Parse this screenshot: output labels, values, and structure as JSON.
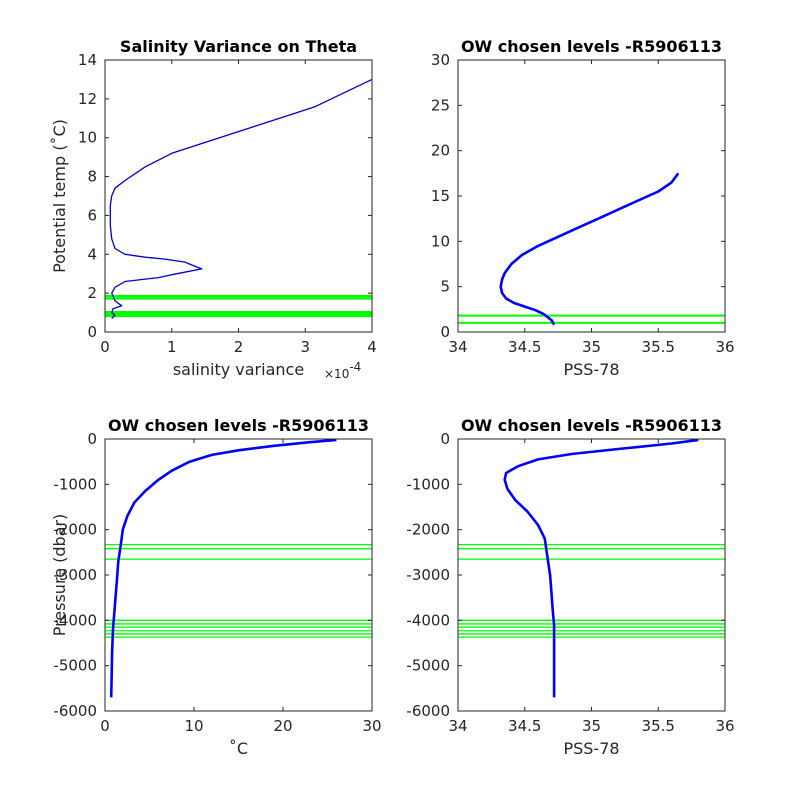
{
  "chart_data": [
    {
      "type": "line",
      "title": "Salinity Variance on Theta",
      "xlabel": "salinity variance",
      "x_exponent_base": "×10",
      "x_exponent_power": "-4",
      "ylabel": "Potential temp (˚C)",
      "xlim": [
        0,
        4
      ],
      "ylim": [
        0,
        14
      ],
      "xticks": [
        0,
        1,
        2,
        3,
        4
      ],
      "yticks": [
        0,
        2,
        4,
        6,
        8,
        10,
        12,
        14
      ],
      "line_color": "#0000cc",
      "level_color": "#00ff00",
      "series": [
        {
          "x": [
            0.1,
            0.15,
            0.1,
            0.12,
            0.25,
            0.15,
            0.1,
            0.15,
            0.3,
            0.8,
            1.0,
            1.45,
            1.3,
            1.2,
            0.9,
            0.6,
            0.3,
            0.15,
            0.1,
            0.08,
            0.08,
            0.1,
            0.15,
            0.3,
            0.6,
            1.0,
            1.9,
            3.15,
            4.0
          ],
          "y": [
            0.7,
            0.85,
            1.0,
            1.2,
            1.35,
            1.6,
            2.0,
            2.3,
            2.6,
            2.8,
            2.95,
            3.25,
            3.45,
            3.6,
            3.75,
            3.85,
            4.0,
            4.3,
            4.8,
            5.5,
            6.5,
            7.0,
            7.4,
            7.8,
            8.5,
            9.2,
            10.2,
            11.6,
            13.0
          ]
        }
      ],
      "levels": [
        0.8,
        0.85,
        0.9,
        0.95,
        1.0,
        1.05,
        1.7,
        1.75,
        1.82,
        1.88
      ]
    },
    {
      "type": "line",
      "title": "OW chosen levels -R5906113",
      "xlabel": "PSS-78",
      "ylabel": "",
      "xlim": [
        34,
        36
      ],
      "ylim": [
        0,
        30
      ],
      "xticks": [
        34,
        34.5,
        35,
        35.5,
        36
      ],
      "yticks": [
        0,
        5,
        10,
        15,
        20,
        25,
        30
      ],
      "line_color": "#0000ff",
      "level_color": "#00ff00",
      "series": [
        {
          "x": [
            34.72,
            34.7,
            34.64,
            34.58,
            34.5,
            34.42,
            34.36,
            34.33,
            34.32,
            34.33,
            34.35,
            34.4,
            34.48,
            34.6,
            34.75,
            34.9,
            35.05,
            35.2,
            35.35,
            35.5,
            35.6,
            35.65
          ],
          "y": [
            0.8,
            1.3,
            2.0,
            2.4,
            2.8,
            3.2,
            3.7,
            4.3,
            5.0,
            5.8,
            6.5,
            7.5,
            8.5,
            9.5,
            10.5,
            11.5,
            12.5,
            13.5,
            14.5,
            15.5,
            16.5,
            17.5
          ]
        }
      ],
      "levels": [
        1.0,
        1.8
      ]
    },
    {
      "type": "line",
      "title": "OW chosen levels -R5906113",
      "xlabel": "˚C",
      "ylabel": "Pressure (dbar)",
      "xlim": [
        0,
        30
      ],
      "ylim": [
        -6000,
        0
      ],
      "xticks": [
        0,
        10,
        20,
        30
      ],
      "yticks": [
        -6000,
        -5000,
        -4000,
        -3000,
        -2000,
        -1000,
        0
      ],
      "line_color": "#0000ff",
      "level_color": "#00ff00",
      "series": [
        {
          "x": [
            0.7,
            0.75,
            0.8,
            0.9,
            1.1,
            1.3,
            1.5,
            1.8,
            2.0,
            2.5,
            3.3,
            4.5,
            6.0,
            7.5,
            9.5,
            12.0,
            15.0,
            19.0,
            23.0,
            26.0
          ],
          "y": [
            -5700,
            -5200,
            -4700,
            -4200,
            -3700,
            -3200,
            -2700,
            -2300,
            -2000,
            -1700,
            -1400,
            -1150,
            -900,
            -700,
            -500,
            -350,
            -250,
            -150,
            -70,
            -20
          ]
        }
      ],
      "levels": [
        -2330,
        -2420,
        -2650,
        -4000,
        -4080,
        -4150,
        -4230,
        -4300,
        -4370
      ]
    },
    {
      "type": "line",
      "title": "OW chosen levels -R5906113",
      "xlabel": "PSS-78",
      "ylabel": "",
      "xlim": [
        34,
        36
      ],
      "ylim": [
        -6000,
        0
      ],
      "xticks": [
        34,
        34.5,
        35,
        35.5,
        36
      ],
      "yticks": [
        -6000,
        -5000,
        -4000,
        -3000,
        -2000,
        -1000,
        0
      ],
      "line_color": "#0000ff",
      "level_color": "#00ff00",
      "series": [
        {
          "x": [
            34.72,
            34.72,
            34.72,
            34.72,
            34.71,
            34.7,
            34.69,
            34.67,
            34.65,
            34.6,
            34.52,
            34.43,
            34.37,
            34.35,
            34.36,
            34.45,
            34.6,
            34.85,
            35.2,
            35.6,
            35.8
          ],
          "y": [
            -5700,
            -5300,
            -4700,
            -4100,
            -3800,
            -3400,
            -3000,
            -2600,
            -2200,
            -1900,
            -1600,
            -1350,
            -1100,
            -900,
            -750,
            -600,
            -450,
            -330,
            -220,
            -100,
            -20
          ]
        }
      ],
      "levels": [
        -2330,
        -2420,
        -2650,
        -4000,
        -4080,
        -4150,
        -4230,
        -4300,
        -4370
      ]
    }
  ]
}
